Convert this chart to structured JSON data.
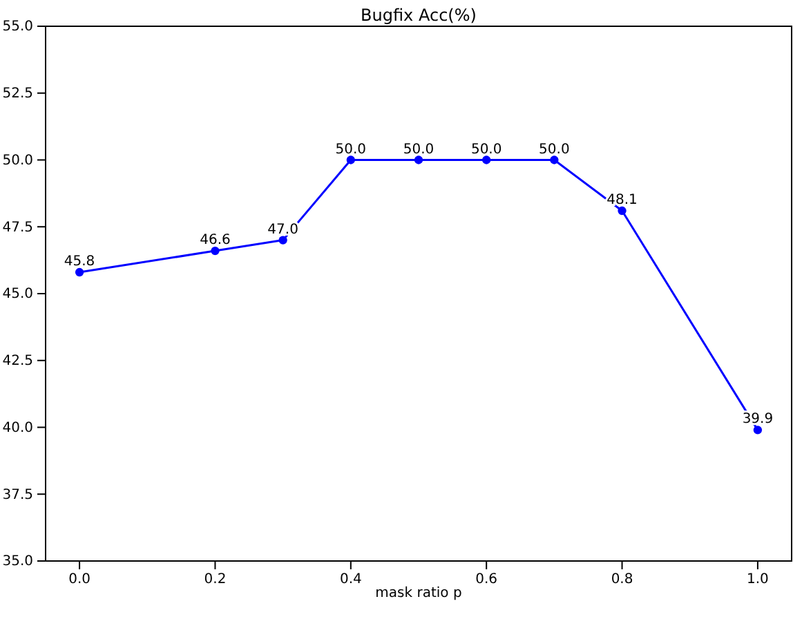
{
  "chart_data": {
    "type": "line",
    "title": "Bugfix Acc(%)",
    "xlabel": "mask ratio p",
    "x": [
      0,
      0.2,
      0.3,
      0.4,
      0.5,
      0.6,
      0.7,
      0.8,
      1.0
    ],
    "series": [
      {
        "color": "#0000ff",
        "values": [
          45.8,
          46.6,
          47.0,
          50.0,
          50.0,
          50.0,
          50.0,
          48.1,
          39.9
        ],
        "value_labels": [
          "45.8",
          "46.6",
          "47.0",
          "50.0",
          "50.0",
          "50.0",
          "50.0",
          "48.1",
          "39.9"
        ]
      }
    ],
    "xlim": [
      -0.05,
      1.05
    ],
    "xticks": [
      {
        "value": 0,
        "label": "0.0"
      },
      {
        "value": 0.2,
        "label": "0.2"
      },
      {
        "value": 0.4,
        "label": "0.4"
      },
      {
        "value": 0.6,
        "label": "0.6"
      },
      {
        "value": 0.8,
        "label": "0.8"
      },
      {
        "value": 1,
        "label": "1.0"
      }
    ],
    "ylim": [
      35,
      55
    ],
    "yticks": [
      {
        "value": 35,
        "label": "35.0"
      },
      {
        "value": 37.5,
        "label": "37.5"
      },
      {
        "value": 40,
        "label": "40.0"
      },
      {
        "value": 42.5,
        "label": "42.5"
      },
      {
        "value": 45,
        "label": "45.0"
      },
      {
        "value": 47.5,
        "label": "47.5"
      },
      {
        "value": 50,
        "label": "50.0"
      },
      {
        "value": 52.5,
        "label": "52.5"
      },
      {
        "value": 55,
        "label": "55.0"
      }
    ],
    "marker": "circle",
    "line_style": "solid",
    "grid": false
  }
}
